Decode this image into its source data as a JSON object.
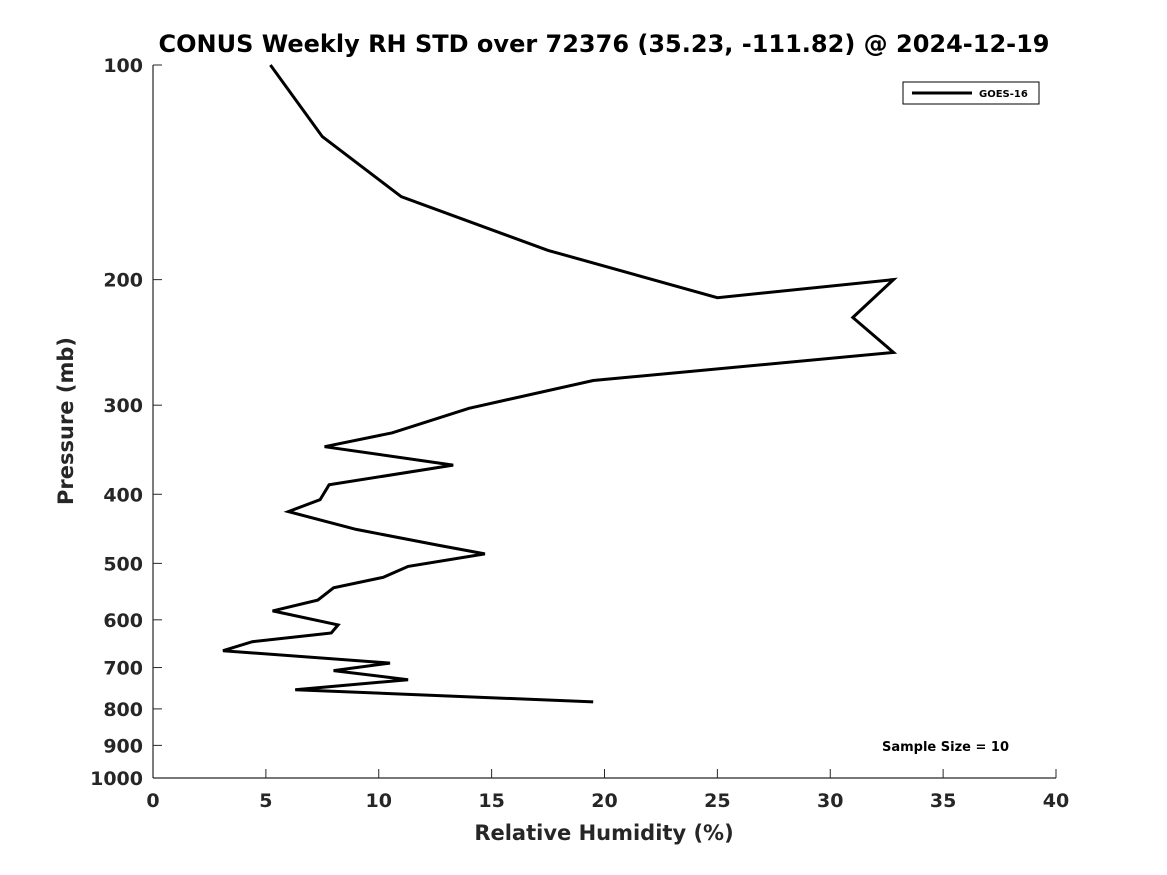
{
  "chart_data": {
    "type": "line",
    "title": "CONUS Weekly RH STD over 72376 (35.23, -111.82) @ 2024-12-19",
    "xlabel": "Relative Humidity (%)",
    "ylabel": "Pressure (mb)",
    "xlim": [
      0,
      40
    ],
    "ylim": [
      100,
      1000
    ],
    "yscale": "log",
    "yreversed": true,
    "grid": false,
    "legend_position": "top-right",
    "x_ticks": [
      "0",
      "5",
      "10",
      "15",
      "20",
      "25",
      "30",
      "35",
      "40"
    ],
    "y_ticks": [
      "100",
      "200",
      "300",
      "400",
      "500",
      "600",
      "700",
      "800",
      "900",
      "1000"
    ],
    "series": [
      {
        "name": "GOES-16",
        "color": "#000000",
        "points": [
          {
            "x": 5.2,
            "p": 100
          },
          {
            "x": 7.5,
            "p": 126
          },
          {
            "x": 11.0,
            "p": 153
          },
          {
            "x": 17.5,
            "p": 182
          },
          {
            "x": 25.0,
            "p": 212
          },
          {
            "x": 32.8,
            "p": 200
          },
          {
            "x": 31.0,
            "p": 226
          },
          {
            "x": 32.8,
            "p": 253
          },
          {
            "x": 19.5,
            "p": 277
          },
          {
            "x": 14.0,
            "p": 303
          },
          {
            "x": 10.6,
            "p": 328
          },
          {
            "x": 7.6,
            "p": 343
          },
          {
            "x": 13.3,
            "p": 364
          },
          {
            "x": 7.8,
            "p": 388
          },
          {
            "x": 7.4,
            "p": 407
          },
          {
            "x": 6.0,
            "p": 423
          },
          {
            "x": 9.0,
            "p": 448
          },
          {
            "x": 12.7,
            "p": 472
          },
          {
            "x": 14.7,
            "p": 485
          },
          {
            "x": 11.3,
            "p": 505
          },
          {
            "x": 10.2,
            "p": 523
          },
          {
            "x": 8.0,
            "p": 541
          },
          {
            "x": 7.3,
            "p": 563
          },
          {
            "x": 5.3,
            "p": 583
          },
          {
            "x": 8.2,
            "p": 610
          },
          {
            "x": 7.9,
            "p": 626
          },
          {
            "x": 4.4,
            "p": 644
          },
          {
            "x": 3.1,
            "p": 663
          },
          {
            "x": 10.5,
            "p": 690
          },
          {
            "x": 8.0,
            "p": 707
          },
          {
            "x": 11.3,
            "p": 728
          },
          {
            "x": 6.3,
            "p": 752
          },
          {
            "x": 19.5,
            "p": 782
          }
        ]
      }
    ],
    "annotation": "Sample Size = 10"
  }
}
